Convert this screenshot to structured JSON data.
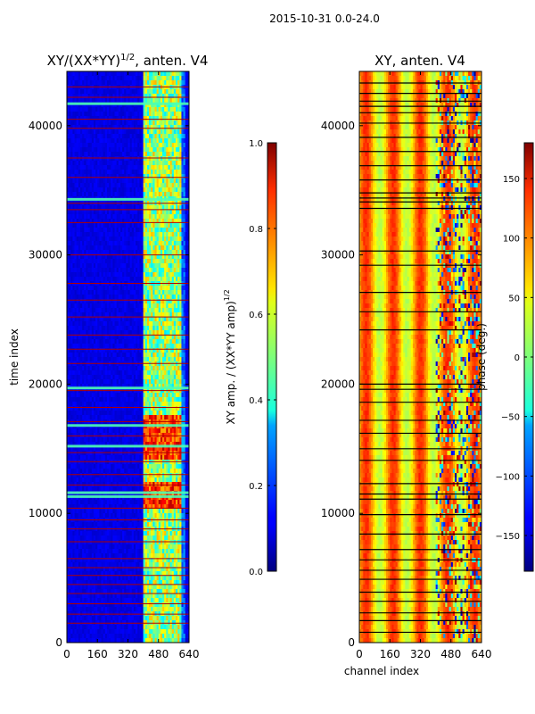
{
  "suptitle": "2015-10-31 0.0-24.0",
  "chart_data": [
    {
      "type": "heatmap",
      "title": "XY/(XX*YY)^1/2, anten. V4",
      "title_main": "XY/(XX*YY)",
      "title_exp": "1/2",
      "title_tail": ", anten. V4",
      "xlabel": "",
      "ylabel": "time index",
      "xlim": [
        0,
        640
      ],
      "ylim": [
        0,
        44200
      ],
      "xticks": [
        0,
        160,
        320,
        480,
        640
      ],
      "yticks": [
        0,
        10000,
        20000,
        30000,
        40000
      ],
      "colormap": "jet",
      "colorbar": {
        "label": "XY amp. / (XX*YY amp)^1/2",
        "label_main": "XY amp. / (XX*YY amp)",
        "label_exp": "1/2",
        "range": [
          0.0,
          1.0
        ],
        "ticks": [
          "0.0",
          "0.2",
          "0.4",
          "0.6",
          "0.8",
          "1.0"
        ]
      },
      "features": {
        "background_value": 0.1,
        "active_channel_range": [
          400,
          620
        ],
        "active_block_channels": [
          420,
          460,
          500,
          540,
          580
        ],
        "bright_row_indices": [
          41700,
          34300,
          19700,
          16800,
          15200,
          11600,
          11300
        ],
        "flagged_row_indices": [
          43000,
          42200,
          40500,
          39800,
          37500,
          36000,
          34000,
          33500,
          32500,
          30000,
          27800,
          26500,
          25200,
          23800,
          22700,
          21600,
          19500,
          18200,
          17100,
          16000,
          14700,
          14000,
          13000,
          12200,
          10400,
          9500,
          8800,
          7800,
          6500,
          5800,
          5200,
          4500,
          3800,
          3000,
          2200,
          1500
        ]
      }
    },
    {
      "type": "heatmap",
      "title": "XY, anten. V4",
      "xlabel": "channel index",
      "ylabel": "",
      "xlim": [
        0,
        640
      ],
      "ylim": [
        0,
        44200
      ],
      "xticks": [
        0,
        160,
        320,
        480,
        640
      ],
      "yticks": [
        0,
        10000,
        20000,
        30000,
        40000
      ],
      "colormap": "jet",
      "colorbar": {
        "label": "phase (deg.)",
        "range": [
          -180,
          180
        ],
        "ticks": [
          "150",
          "100",
          "50",
          "0",
          "−50",
          "−100",
          "−150"
        ]
      },
      "features": {
        "background_value_range": [
          20,
          120
        ],
        "disturbed_channel_range": [
          400,
          640
        ],
        "black_row_indices": [
          43300,
          42500,
          41900,
          41500,
          41000,
          40200,
          39100,
          38000,
          36900,
          35800,
          34800,
          34400,
          34100,
          33600,
          30300,
          29200,
          27100,
          25600,
          24200,
          20000,
          19600,
          18600,
          17200,
          16200,
          15000,
          14100,
          12300,
          11500,
          11100,
          9900,
          8400,
          7200,
          6400,
          5600,
          4900,
          3900,
          3200,
          2300,
          1700,
          800
        ]
      }
    }
  ]
}
